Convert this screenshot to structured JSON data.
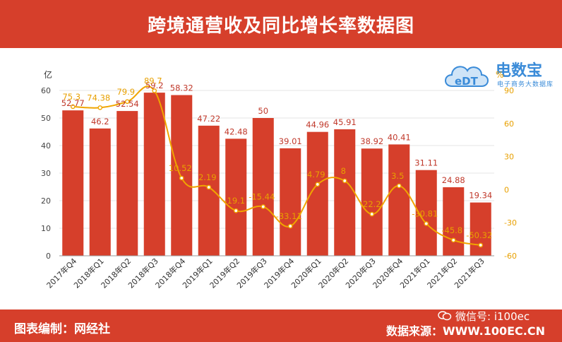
{
  "title": "跨境通营收及同比增长率数据图",
  "footer": {
    "left": "图表编制：网经社",
    "right": "数据来源：WWW.100EC.CN",
    "wechat": "微信号: i100ec"
  },
  "logo": {
    "name": "电数宝",
    "sub": "电子商务大数据库",
    "mark": "eDT"
  },
  "colors": {
    "bar": "#d63f2b",
    "line": "#f0a500",
    "header": "#d63f2b",
    "label_bar": "#c0392b",
    "label_line": "#e8a000"
  },
  "chart_data": {
    "type": "bar",
    "categories": [
      "2017年Q4",
      "2018年Q1",
      "2018年Q2",
      "2018年Q3",
      "2018年Q4",
      "2019年Q1",
      "2019年Q2",
      "2019年Q3",
      "2019年Q4",
      "2020年Q1",
      "2020年Q2",
      "2020年Q3",
      "2020年Q4",
      "2021年Q1",
      "2021年Q2",
      "2021年Q3"
    ],
    "series": [
      {
        "type": "bar",
        "axis": "left",
        "values": [
          52.77,
          46.2,
          52.54,
          59.2,
          58.32,
          47.22,
          42.48,
          50,
          39.01,
          44.96,
          45.91,
          38.92,
          40.41,
          31.11,
          24.88,
          19.34
        ],
        "labels": [
          "52.77",
          "46.2",
          "52.54",
          "59.2",
          "58.32",
          "47.22",
          "42.48",
          "50",
          "39.01",
          "44.96",
          "45.91",
          "38.92",
          "40.41",
          "31.11",
          "24.88",
          "19.34"
        ]
      },
      {
        "type": "line",
        "axis": "right",
        "values": [
          75.3,
          74.38,
          79.9,
          89.7,
          10.52,
          2.19,
          -19.1,
          -15.44,
          -33.11,
          4.79,
          8,
          -22.2,
          3.5,
          -30.81,
          -45.8,
          -50.32
        ],
        "labels": [
          "75.3",
          "74.38",
          "79.9",
          "89.7",
          "10.52",
          "2.19",
          "-19.1",
          "-15.44",
          "-33.11",
          "4.79",
          "8",
          "-22.2",
          "3.5",
          "-30.81",
          "-45.8",
          "-50.32"
        ]
      }
    ],
    "y_left": {
      "unit": "亿",
      "min": 0,
      "max": 60,
      "ticks": [
        "0",
        "10",
        "20",
        "30",
        "40",
        "50",
        "60"
      ]
    },
    "y_right": {
      "unit": "%",
      "min": -60,
      "max": 90,
      "ticks": [
        "-60",
        "-30",
        "0",
        "30",
        "60",
        "90"
      ]
    },
    "grid": true,
    "legend": "none"
  }
}
